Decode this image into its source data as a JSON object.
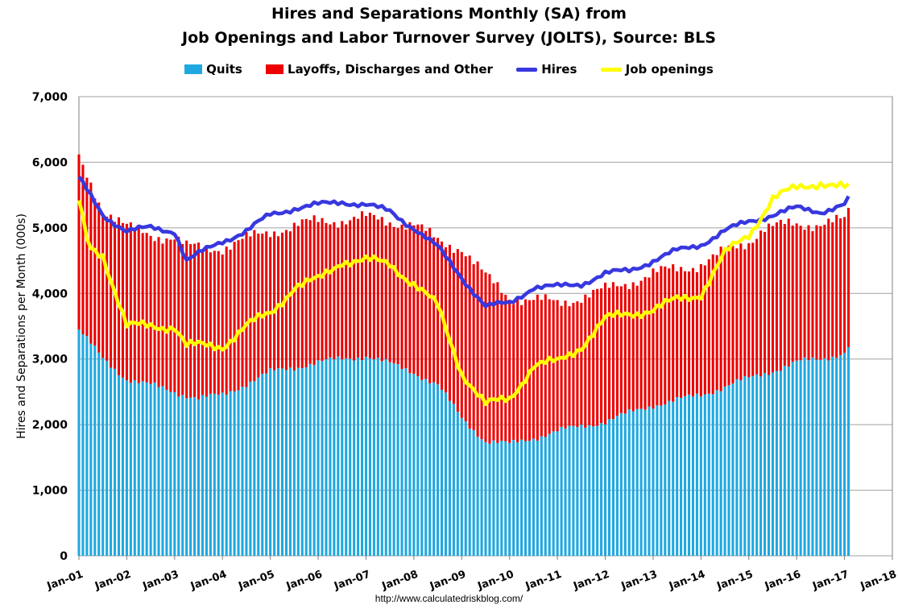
{
  "chart_data": {
    "type": "bar",
    "title": "Hires and Separations Monthly (SA) from",
    "subtitle": "Job Openings and Labor Turnover Survey (JOLTS), Source: BLS",
    "ylabel": "Hires and Separations per Month (000s)",
    "xlabel": "",
    "ylim": [
      0,
      7000
    ],
    "yticks": [
      "0",
      "1,000",
      "2,000",
      "3,000",
      "4,000",
      "5,000",
      "6,000",
      "7,000"
    ],
    "xticks": [
      "Jan-01",
      "Jan-02",
      "Jan-03",
      "Jan-04",
      "Jan-05",
      "Jan-06",
      "Jan-07",
      "Jan-08",
      "Jan-09",
      "Jan-10",
      "Jan-11",
      "Jan-12",
      "Jan-13",
      "Jan-14",
      "Jan-15",
      "Jan-16",
      "Jan-17",
      "Jan-18"
    ],
    "stacked": true,
    "grid": true,
    "legend_position": "top",
    "source": "http://www.calculatedriskblog.com/",
    "series": [
      {
        "name": "Quits",
        "kind": "bar",
        "color": "#1fa8e0",
        "anchors": [
          [
            2001.0,
            3450
          ],
          [
            2001.5,
            3000
          ],
          [
            2002.0,
            2700
          ],
          [
            2003.0,
            2500
          ],
          [
            2003.5,
            2400
          ],
          [
            2004.0,
            2450
          ],
          [
            2005.0,
            2800
          ],
          [
            2006.0,
            2950
          ],
          [
            2007.0,
            3050
          ],
          [
            2008.0,
            2800
          ],
          [
            2008.5,
            2600
          ],
          [
            2009.0,
            2100
          ],
          [
            2009.5,
            1750
          ],
          [
            2010.0,
            1700
          ],
          [
            2011.0,
            1900
          ],
          [
            2012.0,
            2050
          ],
          [
            2013.0,
            2300
          ],
          [
            2014.0,
            2450
          ],
          [
            2014.75,
            2650
          ],
          [
            2015.0,
            2700
          ],
          [
            2016.0,
            2950
          ],
          [
            2016.5,
            3000
          ],
          [
            2017.0,
            3100
          ],
          [
            2017.1,
            3220
          ]
        ]
      },
      {
        "name": "Layoffs, Discharges and Other",
        "kind": "bar",
        "color": "#ee0000",
        "anchors": [
          [
            2001.0,
            6050
          ],
          [
            2001.5,
            5300
          ],
          [
            2002.0,
            5000
          ],
          [
            2002.5,
            4900
          ],
          [
            2003.0,
            4850
          ],
          [
            2003.25,
            4700
          ],
          [
            2004.0,
            4700
          ],
          [
            2005.0,
            4950
          ],
          [
            2006.0,
            5100
          ],
          [
            2007.0,
            5150
          ],
          [
            2008.0,
            5050
          ],
          [
            2008.5,
            4800
          ],
          [
            2009.0,
            4700
          ],
          [
            2009.5,
            4250
          ],
          [
            2010.0,
            3950
          ],
          [
            2011.0,
            3850
          ],
          [
            2012.0,
            4050
          ],
          [
            2013.0,
            4300
          ],
          [
            2014.0,
            4450
          ],
          [
            2015.0,
            4800
          ],
          [
            2015.3,
            5000
          ],
          [
            2016.0,
            5050
          ],
          [
            2017.0,
            5100
          ],
          [
            2017.1,
            5250
          ]
        ]
      },
      {
        "name": "Hires",
        "kind": "line",
        "color": "#3838e0",
        "anchors": [
          [
            2001.0,
            5750
          ],
          [
            2001.5,
            5200
          ],
          [
            2002.0,
            4950
          ],
          [
            2002.5,
            5000
          ],
          [
            2003.0,
            4950
          ],
          [
            2003.25,
            4500
          ],
          [
            2004.0,
            4800
          ],
          [
            2004.5,
            4950
          ],
          [
            2005.0,
            5200
          ],
          [
            2005.5,
            5300
          ],
          [
            2006.0,
            5350
          ],
          [
            2006.5,
            5400
          ],
          [
            2007.0,
            5350
          ],
          [
            2007.5,
            5250
          ],
          [
            2008.0,
            5000
          ],
          [
            2008.5,
            4700
          ],
          [
            2009.0,
            4250
          ],
          [
            2009.5,
            3800
          ],
          [
            2010.0,
            3850
          ],
          [
            2010.5,
            4100
          ],
          [
            2011.0,
            4100
          ],
          [
            2011.5,
            4150
          ],
          [
            2012.0,
            4300
          ],
          [
            2012.5,
            4350
          ],
          [
            2013.0,
            4500
          ],
          [
            2013.5,
            4650
          ],
          [
            2014.0,
            4750
          ],
          [
            2014.5,
            4950
          ],
          [
            2015.0,
            5100
          ],
          [
            2015.5,
            5200
          ],
          [
            2016.0,
            5300
          ],
          [
            2016.5,
            5250
          ],
          [
            2017.0,
            5350
          ],
          [
            2017.1,
            5450
          ]
        ]
      },
      {
        "name": "Job openings",
        "kind": "line",
        "color": "#ffff00",
        "anchors": [
          [
            2001.0,
            5400
          ],
          [
            2001.2,
            4700
          ],
          [
            2001.5,
            4600
          ],
          [
            2002.0,
            3500
          ],
          [
            2002.5,
            3500
          ],
          [
            2003.0,
            3500
          ],
          [
            2003.25,
            3200
          ],
          [
            2004.0,
            3200
          ],
          [
            2004.5,
            3500
          ],
          [
            2005.0,
            3700
          ],
          [
            2005.5,
            4100
          ],
          [
            2006.0,
            4200
          ],
          [
            2006.5,
            4500
          ],
          [
            2007.0,
            4500
          ],
          [
            2007.5,
            4450
          ],
          [
            2008.0,
            4150
          ],
          [
            2008.5,
            3800
          ],
          [
            2009.0,
            2800
          ],
          [
            2009.5,
            2300
          ],
          [
            2010.0,
            2400
          ],
          [
            2010.5,
            2900
          ],
          [
            2011.0,
            2950
          ],
          [
            2011.5,
            3200
          ],
          [
            2012.0,
            3600
          ],
          [
            2012.5,
            3700
          ],
          [
            2013.0,
            3750
          ],
          [
            2013.5,
            3900
          ],
          [
            2014.0,
            4000
          ],
          [
            2014.5,
            4600
          ],
          [
            2015.0,
            4900
          ],
          [
            2015.5,
            5450
          ],
          [
            2016.0,
            5600
          ],
          [
            2016.5,
            5700
          ],
          [
            2017.0,
            5600
          ],
          [
            2017.1,
            5600
          ]
        ]
      }
    ]
  }
}
